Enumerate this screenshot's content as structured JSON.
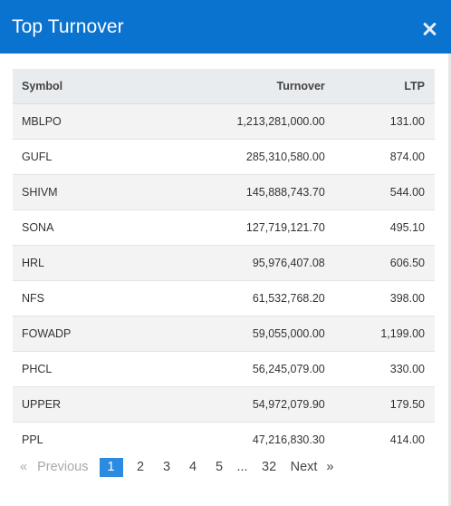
{
  "modal": {
    "title": "Top Turnover",
    "close_icon": "close-icon"
  },
  "table": {
    "headers": {
      "symbol": "Symbol",
      "turnover": "Turnover",
      "ltp": "LTP"
    },
    "rows": [
      {
        "symbol": "MBLPO",
        "turnover": "1,213,281,000.00",
        "ltp": "131.00"
      },
      {
        "symbol": "GUFL",
        "turnover": "285,310,580.00",
        "ltp": "874.00"
      },
      {
        "symbol": "SHIVM",
        "turnover": "145,888,743.70",
        "ltp": "544.00"
      },
      {
        "symbol": "SONA",
        "turnover": "127,719,121.70",
        "ltp": "495.10"
      },
      {
        "symbol": "HRL",
        "turnover": "95,976,407.08",
        "ltp": "606.50"
      },
      {
        "symbol": "NFS",
        "turnover": "61,532,768.20",
        "ltp": "398.00"
      },
      {
        "symbol": "FOWADP",
        "turnover": "59,055,000.00",
        "ltp": "1,199.00"
      },
      {
        "symbol": "PHCL",
        "turnover": "56,245,079.00",
        "ltp": "330.00"
      },
      {
        "symbol": "UPPER",
        "turnover": "54,972,079.90",
        "ltp": "179.50"
      },
      {
        "symbol": "PPL",
        "turnover": "47,216,830.30",
        "ltp": "414.00"
      }
    ]
  },
  "pagination": {
    "prev_arrow": "«",
    "previous": "Previous",
    "pages": [
      "1",
      "2",
      "3",
      "4",
      "5"
    ],
    "active_page": "1",
    "ellipsis": "...",
    "last_page": "32",
    "next": "Next",
    "next_arrow": "»"
  }
}
